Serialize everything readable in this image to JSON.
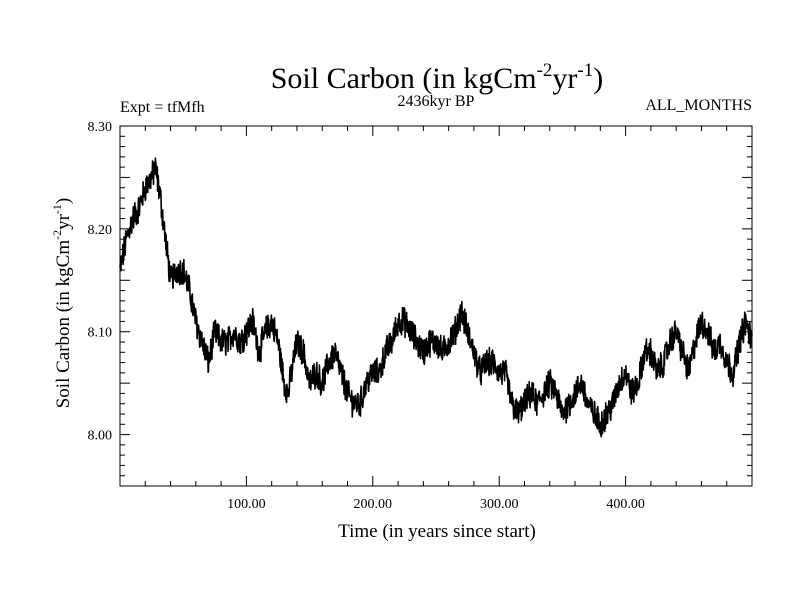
{
  "chart_data": {
    "type": "line",
    "title": {
      "base": "Soil Carbon (in kgCm",
      "sup1": "-2",
      "mid": "yr",
      "sup2": "-1",
      "end": ")"
    },
    "left_subtitle": "Expt = tfMfh",
    "center_subtitle": "2436kyr BP",
    "right_subtitle": "ALL_MONTHS",
    "xlabel": "Time (in years since start)",
    "ylabel": {
      "base": "Soil Carbon (in kgCm",
      "sup1": "-2",
      "mid": "yr",
      "sup2": "-1",
      "end": ")"
    },
    "xlim": [
      0,
      500
    ],
    "ylim": [
      7.95,
      8.3
    ],
    "x_ticks": [
      100,
      200,
      300,
      400
    ],
    "x_tick_labels": [
      "100.00",
      "200.00",
      "300.00",
      "400.00"
    ],
    "y_ticks": [
      8.0,
      8.1,
      8.2,
      8.3
    ],
    "y_tick_labels": [
      "8.00",
      "8.10",
      "8.20",
      "8.30"
    ],
    "grid": false,
    "series": [
      {
        "name": "Soil Carbon",
        "color": "#000000",
        "noise_amplitude": 0.012,
        "points": [
          [
            0,
            8.16
          ],
          [
            5,
            8.19
          ],
          [
            10,
            8.21
          ],
          [
            15,
            8.22
          ],
          [
            20,
            8.24
          ],
          [
            25,
            8.25
          ],
          [
            28,
            8.26
          ],
          [
            32,
            8.23
          ],
          [
            36,
            8.19
          ],
          [
            40,
            8.15
          ],
          [
            45,
            8.16
          ],
          [
            50,
            8.16
          ],
          [
            55,
            8.14
          ],
          [
            60,
            8.11
          ],
          [
            65,
            8.09
          ],
          [
            70,
            8.07
          ],
          [
            75,
            8.1
          ],
          [
            80,
            8.09
          ],
          [
            85,
            8.09
          ],
          [
            90,
            8.1
          ],
          [
            95,
            8.09
          ],
          [
            100,
            8.1
          ],
          [
            105,
            8.11
          ],
          [
            110,
            8.08
          ],
          [
            115,
            8.1
          ],
          [
            120,
            8.11
          ],
          [
            125,
            8.09
          ],
          [
            130,
            8.05
          ],
          [
            133,
            8.04
          ],
          [
            137,
            8.07
          ],
          [
            140,
            8.09
          ],
          [
            145,
            8.08
          ],
          [
            150,
            8.05
          ],
          [
            155,
            8.06
          ],
          [
            160,
            8.05
          ],
          [
            165,
            8.07
          ],
          [
            170,
            8.08
          ],
          [
            175,
            8.06
          ],
          [
            180,
            8.04
          ],
          [
            185,
            8.03
          ],
          [
            190,
            8.03
          ],
          [
            195,
            8.05
          ],
          [
            200,
            8.06
          ],
          [
            205,
            8.06
          ],
          [
            210,
            8.08
          ],
          [
            215,
            8.09
          ],
          [
            220,
            8.11
          ],
          [
            225,
            8.11
          ],
          [
            230,
            8.1
          ],
          [
            235,
            8.09
          ],
          [
            240,
            8.08
          ],
          [
            245,
            8.09
          ],
          [
            250,
            8.09
          ],
          [
            255,
            8.08
          ],
          [
            260,
            8.09
          ],
          [
            265,
            8.1
          ],
          [
            270,
            8.12
          ],
          [
            275,
            8.1
          ],
          [
            280,
            8.08
          ],
          [
            285,
            8.06
          ],
          [
            290,
            8.07
          ],
          [
            295,
            8.07
          ],
          [
            300,
            8.06
          ],
          [
            305,
            8.06
          ],
          [
            310,
            8.03
          ],
          [
            315,
            8.02
          ],
          [
            320,
            8.03
          ],
          [
            325,
            8.04
          ],
          [
            330,
            8.03
          ],
          [
            335,
            8.04
          ],
          [
            340,
            8.05
          ],
          [
            345,
            8.04
          ],
          [
            350,
            8.02
          ],
          [
            355,
            8.03
          ],
          [
            360,
            8.04
          ],
          [
            365,
            8.05
          ],
          [
            370,
            8.03
          ],
          [
            375,
            8.02
          ],
          [
            380,
            8.01
          ],
          [
            385,
            8.02
          ],
          [
            390,
            8.03
          ],
          [
            395,
            8.05
          ],
          [
            400,
            8.06
          ],
          [
            405,
            8.04
          ],
          [
            410,
            8.05
          ],
          [
            415,
            8.08
          ],
          [
            420,
            8.08
          ],
          [
            425,
            8.06
          ],
          [
            430,
            8.07
          ],
          [
            435,
            8.09
          ],
          [
            440,
            8.1
          ],
          [
            445,
            8.08
          ],
          [
            450,
            8.06
          ],
          [
            455,
            8.09
          ],
          [
            460,
            8.11
          ],
          [
            465,
            8.1
          ],
          [
            470,
            8.08
          ],
          [
            475,
            8.09
          ],
          [
            480,
            8.07
          ],
          [
            485,
            8.06
          ],
          [
            490,
            8.09
          ],
          [
            495,
            8.11
          ],
          [
            500,
            8.09
          ]
        ]
      }
    ]
  }
}
